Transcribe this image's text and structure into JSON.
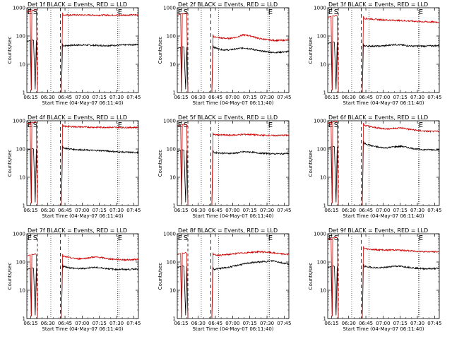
{
  "figure": {
    "x_label": "Start Time (04-May-07 06:11:40)",
    "y_label": "Counts/sec"
  },
  "chart_data": [
    {
      "type": "line",
      "title": "Det 1f BLACK = Events, RED = LLD",
      "xlabel": "Start Time (04-May-07 06:11:40)",
      "ylabel": "Counts/sec",
      "x_ticks": [
        "06:15",
        "06:30",
        "06:45",
        "07:00",
        "07:15",
        "07:30",
        "07:45"
      ],
      "y_ticks": [
        "1",
        "10",
        "100",
        "1000"
      ],
      "y_scale": "log",
      "ylim": [
        1,
        1000
      ],
      "markers": [
        "E",
        "S",
        "E"
      ],
      "series": [
        {
          "name": "Events",
          "color": "#000000",
          "before": 70,
          "after": [
            45,
            47,
            48,
            48,
            47,
            46,
            46,
            47,
            48,
            49,
            50
          ]
        },
        {
          "name": "LLD",
          "color": "#cc0000",
          "before": 800,
          "after": [
            560,
            560,
            555,
            555,
            550,
            550,
            550,
            550,
            550,
            555,
            560
          ]
        }
      ]
    },
    {
      "type": "line",
      "title": "Det 2f BLACK = Events, RED = LLD",
      "xlabel": "Start Time (04-May-07 06:11:40)",
      "ylabel": "Counts/sec",
      "x_ticks": [
        "06:15",
        "06:30",
        "06:45",
        "07:00",
        "07:15",
        "07:30",
        "07:45"
      ],
      "y_ticks": [
        "1",
        "10",
        "100",
        "1000"
      ],
      "y_scale": "log",
      "ylim": [
        1,
        1000
      ],
      "markers": [
        "E",
        "S",
        "E"
      ],
      "series": [
        {
          "name": "Events",
          "color": "#000000",
          "before": 40,
          "after": [
            40,
            33,
            32,
            35,
            38,
            35,
            30,
            28,
            26,
            27,
            28
          ]
        },
        {
          "name": "LLD",
          "color": "#cc0000",
          "before": 600,
          "after": [
            95,
            85,
            82,
            90,
            110,
            100,
            82,
            75,
            70,
            70,
            72
          ]
        }
      ]
    },
    {
      "type": "line",
      "title": "Det 3f BLACK = Events, RED = LLD",
      "xlabel": "Start Time (04-May-07 06:11:40)",
      "ylabel": "Counts/sec",
      "x_ticks": [
        "06:15",
        "06:30",
        "06:45",
        "07:00",
        "07:15",
        "07:30",
        "07:45"
      ],
      "y_ticks": [
        "1",
        "10",
        "100",
        "1000"
      ],
      "y_scale": "log",
      "ylim": [
        1,
        1000
      ],
      "markers": [
        "E",
        "S",
        "E"
      ],
      "series": [
        {
          "name": "Events",
          "color": "#000000",
          "before": 60,
          "after": [
            45,
            44,
            44,
            46,
            50,
            48,
            45,
            44,
            44,
            45,
            46
          ]
        },
        {
          "name": "LLD",
          "color": "#cc0000",
          "before": 500,
          "after": [
            420,
            400,
            380,
            370,
            360,
            350,
            340,
            330,
            320,
            315,
            310
          ]
        }
      ]
    },
    {
      "type": "line",
      "title": "Det 4f BLACK = Events, RED = LLD",
      "xlabel": "Start Time (04-May-07 06:11:40)",
      "ylabel": "Counts/sec",
      "x_ticks": [
        "06:15",
        "06:30",
        "06:45",
        "07:00",
        "07:15",
        "07:30",
        "07:45"
      ],
      "y_ticks": [
        "1",
        "10",
        "100",
        "1000"
      ],
      "y_scale": "log",
      "ylim": [
        1,
        1000
      ],
      "markers": [
        "E",
        "S",
        "E"
      ],
      "series": [
        {
          "name": "Events",
          "color": "#000000",
          "before": 100,
          "after": [
            110,
            100,
            95,
            92,
            90,
            88,
            85,
            80,
            78,
            76,
            75
          ]
        },
        {
          "name": "LLD",
          "color": "#cc0000",
          "before": 850,
          "after": [
            640,
            620,
            610,
            600,
            590,
            590,
            585,
            580,
            580,
            580,
            585
          ]
        }
      ]
    },
    {
      "type": "line",
      "title": "Det 5f BLACK = Events, RED = LLD",
      "xlabel": "Start Time (04-May-07 06:11:40)",
      "ylabel": "Counts/sec",
      "x_ticks": [
        "06:15",
        "06:30",
        "06:45",
        "07:00",
        "07:15",
        "07:30",
        "07:45"
      ],
      "y_ticks": [
        "1",
        "10",
        "100",
        "1000"
      ],
      "y_scale": "log",
      "ylim": [
        1,
        1000
      ],
      "markers": [
        "E",
        "S",
        "E"
      ],
      "series": [
        {
          "name": "Events",
          "color": "#000000",
          "before": 90,
          "after": [
            75,
            72,
            70,
            72,
            80,
            78,
            72,
            70,
            68,
            68,
            70
          ]
        },
        {
          "name": "LLD",
          "color": "#cc0000",
          "before": 700,
          "after": [
            320,
            315,
            310,
            315,
            330,
            325,
            310,
            305,
            300,
            305,
            310
          ]
        }
      ]
    },
    {
      "type": "line",
      "title": "Det 6f BLACK = Events, RED = LLD",
      "xlabel": "Start Time (04-May-07 06:11:40)",
      "ylabel": "Counts/sec",
      "x_ticks": [
        "06:15",
        "06:30",
        "06:45",
        "07:00",
        "07:15",
        "07:30",
        "07:45"
      ],
      "y_ticks": [
        "1",
        "10",
        "100",
        "1000"
      ],
      "y_scale": "log",
      "ylim": [
        1,
        1000
      ],
      "markers": [
        "E",
        "S",
        "E"
      ],
      "series": [
        {
          "name": "Events",
          "color": "#000000",
          "before": 120,
          "after": [
            160,
            130,
            115,
            110,
            120,
            125,
            110,
            100,
            95,
            95,
            95
          ]
        },
        {
          "name": "LLD",
          "color": "#cc0000",
          "before": 900,
          "after": [
            700,
            600,
            550,
            520,
            540,
            560,
            500,
            460,
            430,
            420,
            420
          ]
        }
      ]
    },
    {
      "type": "line",
      "title": "Det 7f BLACK = Events, RED = LLD",
      "xlabel": "Start Time (04-May-07 06:11:40)",
      "ylabel": "Counts/sec",
      "x_ticks": [
        "06:15",
        "06:30",
        "06:45",
        "07:00",
        "07:15",
        "07:30",
        "07:45"
      ],
      "y_ticks": [
        "1",
        "10",
        "100",
        "1000"
      ],
      "y_scale": "log",
      "ylim": [
        1,
        1000
      ],
      "markers": [
        "E",
        "S",
        "E"
      ],
      "series": [
        {
          "name": "Events",
          "color": "#000000",
          "before": 60,
          "after": [
            70,
            62,
            58,
            60,
            65,
            62,
            58,
            55,
            55,
            55,
            58
          ]
        },
        {
          "name": "LLD",
          "color": "#cc0000",
          "before": 180,
          "after": [
            160,
            140,
            130,
            135,
            150,
            145,
            130,
            125,
            120,
            120,
            125
          ]
        }
      ]
    },
    {
      "type": "line",
      "title": "Det 8f BLACK = Events, RED = LLD",
      "xlabel": "Start Time (04-May-07 06:11:40)",
      "ylabel": "Counts/sec",
      "x_ticks": [
        "06:15",
        "06:30",
        "06:45",
        "07:00",
        "07:15",
        "07:30",
        "07:45"
      ],
      "y_ticks": [
        "1",
        "10",
        "100",
        "1000"
      ],
      "y_scale": "log",
      "ylim": [
        1,
        1000
      ],
      "markers": [
        "E",
        "S",
        "E"
      ],
      "series": [
        {
          "name": "Events",
          "color": "#000000",
          "before": 70,
          "after": [
            55,
            60,
            65,
            75,
            85,
            95,
            100,
            105,
            110,
            95,
            85
          ]
        },
        {
          "name": "LLD",
          "color": "#cc0000",
          "before": 200,
          "after": [
            180,
            175,
            185,
            200,
            210,
            220,
            230,
            225,
            210,
            195,
            185
          ]
        }
      ]
    },
    {
      "type": "line",
      "title": "Det 9f BLACK = Events, RED = LLD",
      "xlabel": "Start Time (04-May-07 06:11:40)",
      "ylabel": "Counts/sec",
      "x_ticks": [
        "06:15",
        "06:30",
        "06:45",
        "07:00",
        "07:15",
        "07:30",
        "07:45"
      ],
      "y_ticks": [
        "1",
        "10",
        "100",
        "1000"
      ],
      "y_scale": "log",
      "ylim": [
        1,
        1000
      ],
      "markers": [
        "E",
        "S",
        "E"
      ],
      "series": [
        {
          "name": "Events",
          "color": "#000000",
          "before": 70,
          "after": [
            70,
            65,
            62,
            65,
            72,
            70,
            65,
            60,
            58,
            58,
            60
          ]
        },
        {
          "name": "LLD",
          "color": "#cc0000",
          "before": 700,
          "after": [
            300,
            280,
            270,
            265,
            270,
            260,
            250,
            240,
            235,
            230,
            230
          ]
        }
      ]
    }
  ]
}
